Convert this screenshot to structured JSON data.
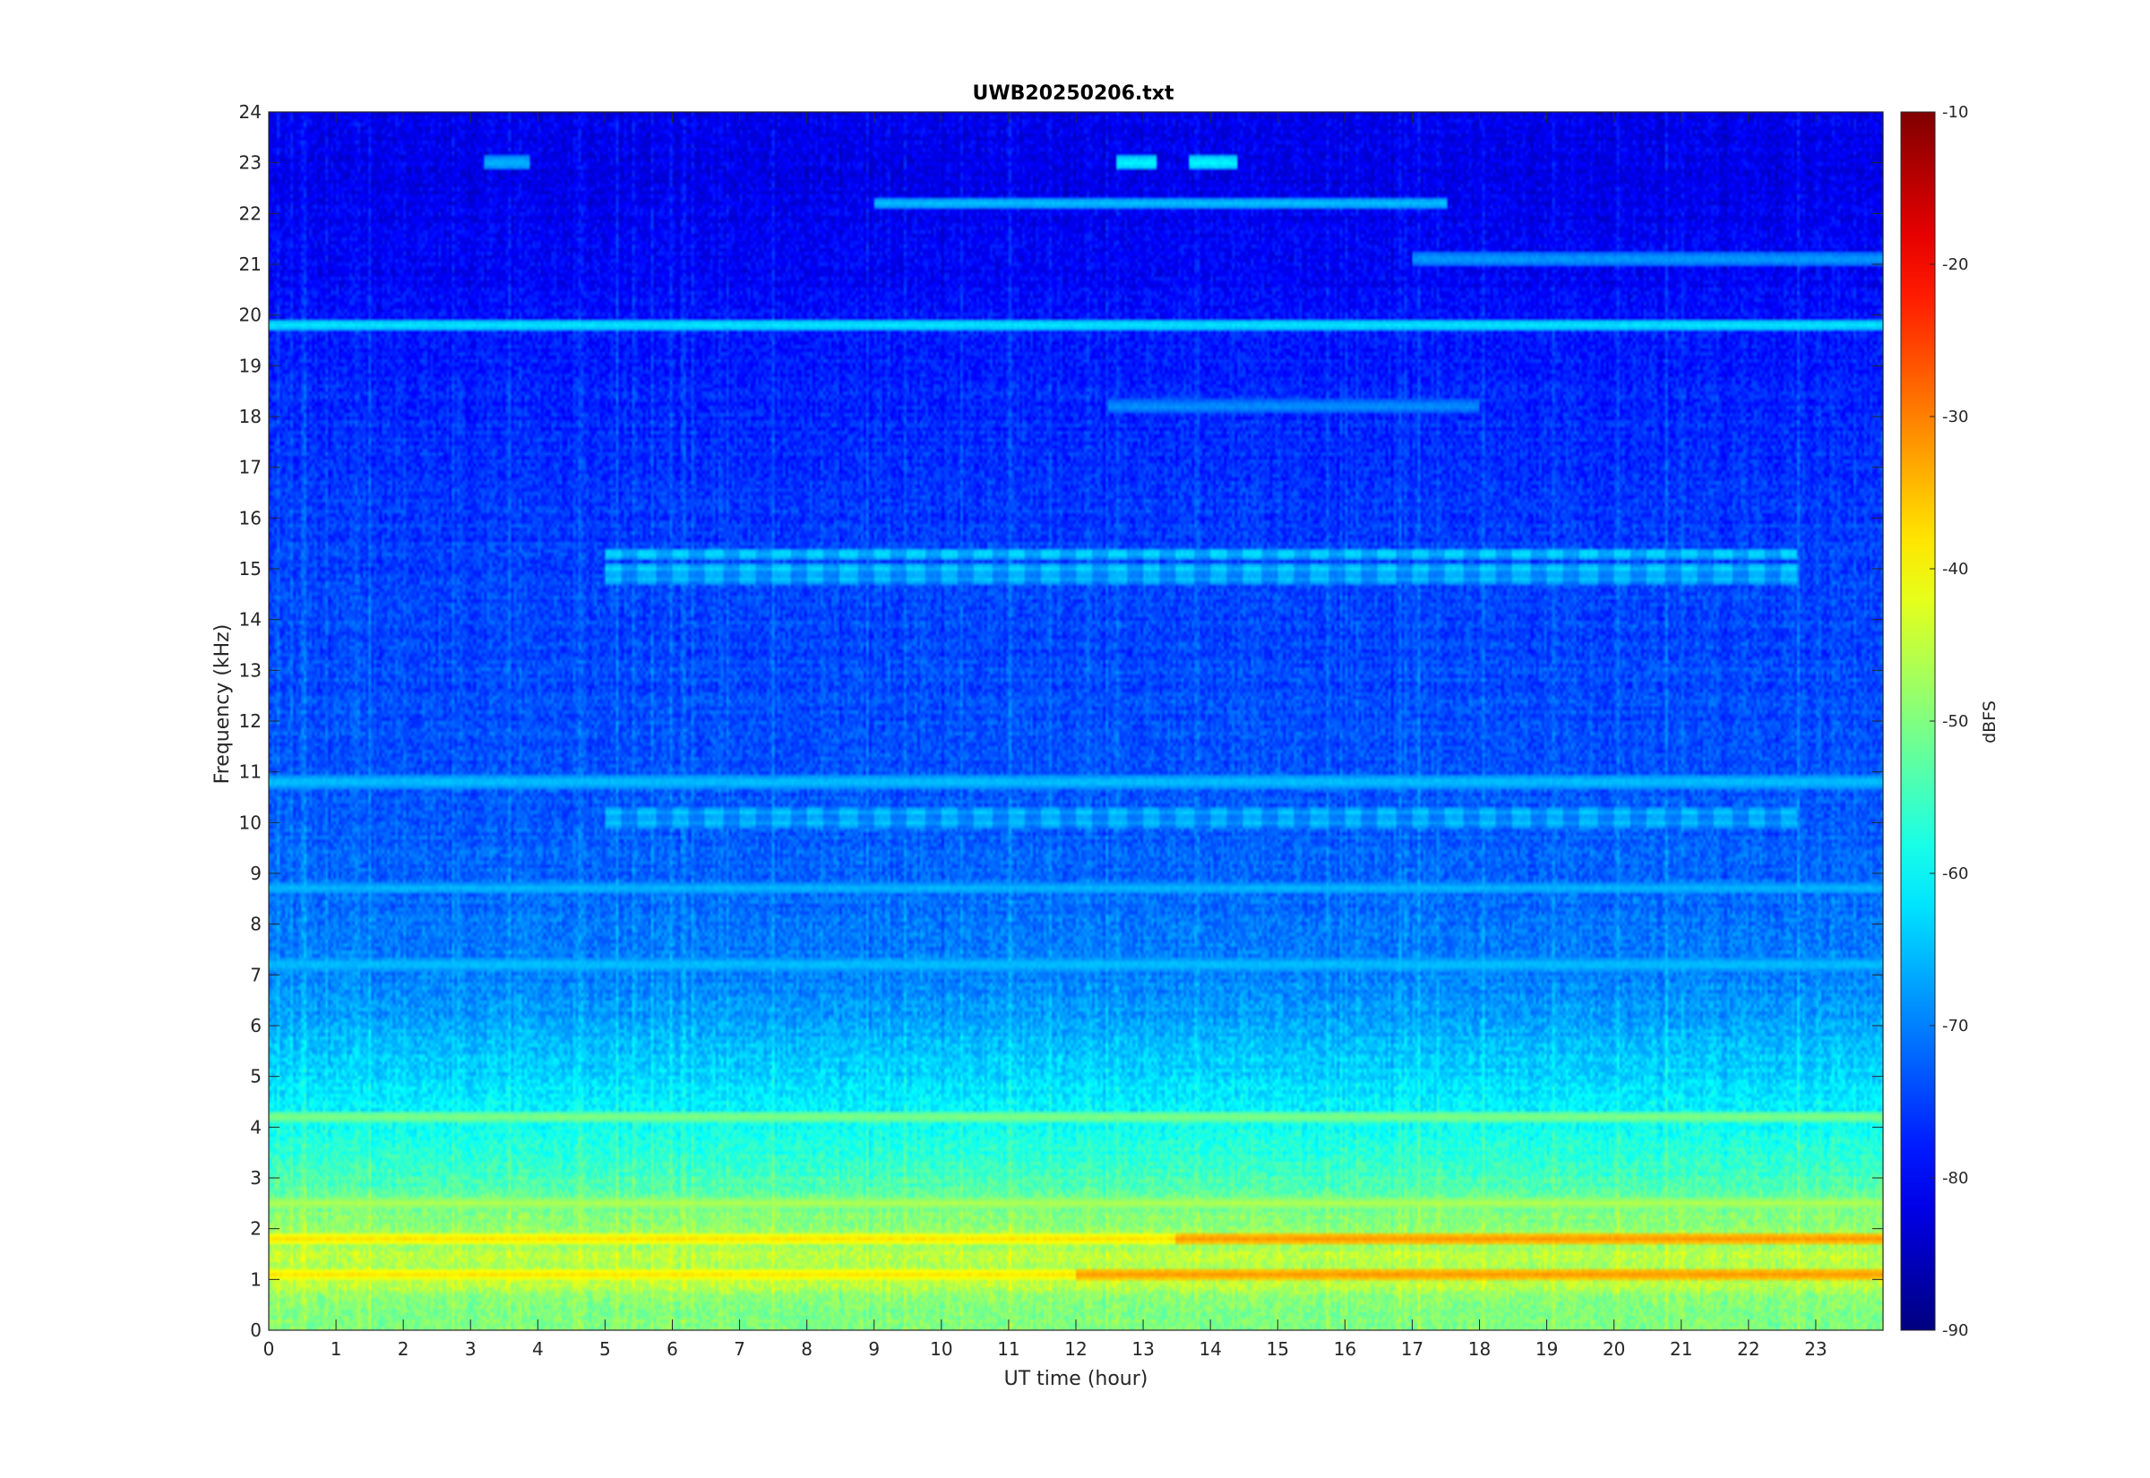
{
  "chart_data": {
    "type": "heatmap",
    "title": "UWB20250206.txt",
    "xlabel": "UT time (hour)",
    "ylabel": "Frequency (kHz)",
    "xlim": [
      0,
      24
    ],
    "ylim": [
      0,
      24
    ],
    "x_ticks": [
      0,
      1,
      2,
      3,
      4,
      5,
      6,
      7,
      8,
      9,
      10,
      11,
      12,
      13,
      14,
      15,
      16,
      17,
      18,
      19,
      20,
      21,
      22,
      23
    ],
    "y_ticks": [
      0,
      1,
      2,
      3,
      4,
      5,
      6,
      7,
      8,
      9,
      10,
      11,
      12,
      13,
      14,
      15,
      16,
      17,
      18,
      19,
      20,
      21,
      22,
      23,
      24
    ],
    "colorbar": {
      "label": "dBFS",
      "range": [
        -90,
        -10
      ],
      "ticks": [
        -10,
        -20,
        -30,
        -40,
        -50,
        -60,
        -70,
        -80,
        -90
      ],
      "colormap": "jet"
    },
    "grid": false,
    "background_profile": [
      {
        "f": 0.0,
        "db": -50
      },
      {
        "f": 0.5,
        "db": -50
      },
      {
        "f": 1.0,
        "db": -45
      },
      {
        "f": 1.5,
        "db": -46
      },
      {
        "f": 2.0,
        "db": -48
      },
      {
        "f": 2.5,
        "db": -52
      },
      {
        "f": 3.0,
        "db": -55
      },
      {
        "f": 4.0,
        "db": -59
      },
      {
        "f": 5.0,
        "db": -63
      },
      {
        "f": 6.0,
        "db": -67
      },
      {
        "f": 7.0,
        "db": -70
      },
      {
        "f": 8.0,
        "db": -71
      },
      {
        "f": 10.0,
        "db": -73
      },
      {
        "f": 12.0,
        "db": -74
      },
      {
        "f": 15.0,
        "db": -75
      },
      {
        "f": 18.0,
        "db": -77
      },
      {
        "f": 19.5,
        "db": -78
      },
      {
        "f": 20.5,
        "db": -80
      },
      {
        "f": 22.0,
        "db": -81
      },
      {
        "f": 24.0,
        "db": -82
      }
    ],
    "tonal_lines": [
      {
        "freq": 19.8,
        "db": -62,
        "t_start": 0,
        "t_end": 24
      },
      {
        "freq": 22.2,
        "db": -65,
        "t_start": 9,
        "t_end": 17.5
      },
      {
        "freq": 21.1,
        "db": -67,
        "t_start": 17,
        "t_end": 24
      },
      {
        "freq": 18.2,
        "db": -68,
        "t_start": 12.5,
        "t_end": 18
      },
      {
        "freq": 23.0,
        "db": -60,
        "t_start": 12.6,
        "t_end": 13.2
      },
      {
        "freq": 23.0,
        "db": -60,
        "t_start": 13.7,
        "t_end": 14.4
      },
      {
        "freq": 23.0,
        "db": -65,
        "t_start": 3.2,
        "t_end": 3.9
      },
      {
        "freq": 15.3,
        "db": -62,
        "t_start": 5,
        "t_end": 22.7
      },
      {
        "freq": 15.0,
        "db": -63,
        "t_start": 5,
        "t_end": 22.7
      },
      {
        "freq": 14.8,
        "db": -64,
        "t_start": 5,
        "t_end": 22.7
      },
      {
        "freq": 10.8,
        "db": -64,
        "t_start": 0,
        "t_end": 24
      },
      {
        "freq": 10.2,
        "db": -64,
        "t_start": 5,
        "t_end": 22.7
      },
      {
        "freq": 10.0,
        "db": -64,
        "t_start": 5,
        "t_end": 22.7
      },
      {
        "freq": 8.7,
        "db": -65,
        "t_start": 0,
        "t_end": 24
      },
      {
        "freq": 7.2,
        "db": -64,
        "t_start": 0,
        "t_end": 24
      },
      {
        "freq": 4.2,
        "db": -50,
        "t_start": 0,
        "t_end": 24
      },
      {
        "freq": 2.5,
        "db": -46,
        "t_start": 0,
        "t_end": 24
      },
      {
        "freq": 1.8,
        "db": -38,
        "t_start": 0,
        "t_end": 24
      },
      {
        "freq": 1.1,
        "db": -38,
        "t_start": 0,
        "t_end": 24
      },
      {
        "freq": 1.8,
        "db": -32,
        "t_start": 13.5,
        "t_end": 24
      },
      {
        "freq": 1.1,
        "db": -32,
        "t_start": 12,
        "t_end": 24
      }
    ]
  }
}
